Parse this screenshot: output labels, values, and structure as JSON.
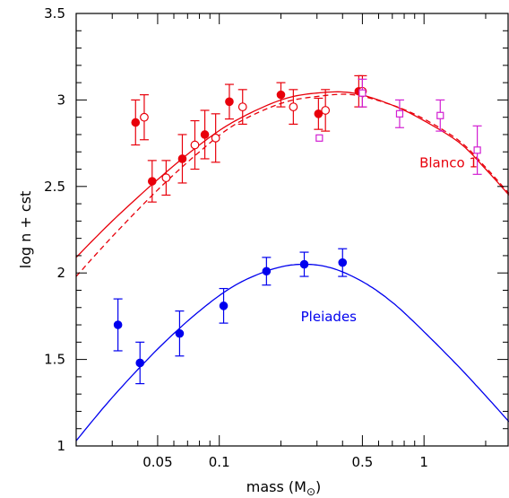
{
  "chart_data": {
    "type": "scatter",
    "xlabel": "mass (M",
    "xlabel_symbol": "⊙",
    "xlabel_close": ")",
    "ylabel": "log n + cst",
    "x_scale": "log",
    "xlim": [
      0.02,
      2.6
    ],
    "ylim": [
      1,
      3.5
    ],
    "grid": false,
    "x_ticks": [
      {
        "value": 0.05,
        "label": "0.05"
      },
      {
        "value": 0.1,
        "label": "0.1"
      },
      {
        "value": 0.5,
        "label": "0.5"
      },
      {
        "value": 1,
        "label": "1"
      }
    ],
    "y_ticks": [
      {
        "value": 1,
        "label": "1"
      },
      {
        "value": 1.5,
        "label": "1.5"
      },
      {
        "value": 2,
        "label": "2"
      },
      {
        "value": 2.5,
        "label": "2.5"
      },
      {
        "value": 3,
        "label": "3"
      },
      {
        "value": 3.5,
        "label": "3.5"
      }
    ],
    "labels": [
      {
        "text": "Blanco 1",
        "color": "#e8000b",
        "x": 0.95,
        "y": 2.61
      },
      {
        "text": "Pleiades",
        "color": "#0000ee",
        "x": 0.25,
        "y": 1.72
      }
    ],
    "series": [
      {
        "name": "Blanco 1",
        "marker": "filled-circle",
        "color": "#e8000b",
        "points": [
          {
            "x": 0.039,
            "y": 2.87,
            "err": 0.13
          },
          {
            "x": 0.047,
            "y": 2.53,
            "err": 0.12
          },
          {
            "x": 0.066,
            "y": 2.66,
            "err": 0.14
          },
          {
            "x": 0.085,
            "y": 2.8,
            "err": 0.14
          },
          {
            "x": 0.112,
            "y": 2.99,
            "err": 0.1
          },
          {
            "x": 0.2,
            "y": 3.03,
            "err": 0.07
          },
          {
            "x": 0.305,
            "y": 2.92,
            "err": 0.09
          },
          {
            "x": 0.48,
            "y": 3.05,
            "err": 0.09
          }
        ]
      },
      {
        "name": "Blanco 1",
        "marker": "open-circle",
        "color": "#e8000b",
        "points": [
          {
            "x": 0.043,
            "y": 2.9,
            "err": 0.13
          },
          {
            "x": 0.055,
            "y": 2.55,
            "err": 0.1
          },
          {
            "x": 0.076,
            "y": 2.74,
            "err": 0.14
          },
          {
            "x": 0.096,
            "y": 2.78,
            "err": 0.14
          },
          {
            "x": 0.13,
            "y": 2.96,
            "err": 0.1
          },
          {
            "x": 0.23,
            "y": 2.96,
            "err": 0.1
          },
          {
            "x": 0.33,
            "y": 2.94,
            "err": 0.12
          },
          {
            "x": 0.5,
            "y": 3.05,
            "err": 0.09
          }
        ]
      },
      {
        "name": "Blanco 1",
        "marker": "open-square",
        "color": "#d21fd2",
        "points": [
          {
            "x": 0.308,
            "y": 2.78,
            "err": 0.0
          },
          {
            "x": 0.5,
            "y": 3.04,
            "err": 0.08
          },
          {
            "x": 0.76,
            "y": 2.92,
            "err": 0.08
          },
          {
            "x": 1.2,
            "y": 2.91,
            "err": 0.09
          },
          {
            "x": 1.82,
            "y": 2.71,
            "err": 0.14
          }
        ]
      },
      {
        "name": "Pleiades",
        "marker": "filled-circle",
        "color": "#0000ee",
        "points": [
          {
            "x": 0.032,
            "y": 1.7,
            "err": 0.15
          },
          {
            "x": 0.041,
            "y": 1.48,
            "err": 0.12
          },
          {
            "x": 0.064,
            "y": 1.65,
            "err": 0.13
          },
          {
            "x": 0.105,
            "y": 1.81,
            "err": 0.1
          },
          {
            "x": 0.17,
            "y": 2.01,
            "err": 0.08
          },
          {
            "x": 0.26,
            "y": 2.05,
            "err": 0.07
          },
          {
            "x": 0.4,
            "y": 2.06,
            "err": 0.08
          }
        ]
      }
    ],
    "curves": [
      {
        "name": "Blanco 1",
        "style": "solid",
        "color": "#e8000b",
        "x": [
          0.02,
          0.03,
          0.05,
          0.08,
          0.12,
          0.2,
          0.3,
          0.45,
          0.7,
          1,
          1.5,
          2,
          2.6
        ],
        "y": [
          2.09,
          2.3,
          2.54,
          2.74,
          2.88,
          3.0,
          3.04,
          3.04,
          2.97,
          2.88,
          2.75,
          2.6,
          2.45
        ]
      },
      {
        "name": "Blanco 1",
        "style": "dashed",
        "color": "#e8000b",
        "x": [
          0.02,
          0.03,
          0.05,
          0.08,
          0.12,
          0.2,
          0.3,
          0.45,
          0.7,
          1,
          1.5,
          2,
          2.6
        ],
        "y": [
          1.98,
          2.21,
          2.48,
          2.7,
          2.86,
          2.98,
          3.02,
          3.03,
          2.97,
          2.89,
          2.76,
          2.61,
          2.46
        ]
      },
      {
        "name": "Pleiades",
        "style": "solid",
        "color": "#0000ee",
        "x": [
          0.02,
          0.03,
          0.05,
          0.08,
          0.12,
          0.18,
          0.25,
          0.35,
          0.5,
          0.7,
          1,
          1.5,
          2,
          2.6
        ],
        "y": [
          1.03,
          1.28,
          1.56,
          1.78,
          1.93,
          2.02,
          2.05,
          2.03,
          1.95,
          1.83,
          1.66,
          1.45,
          1.29,
          1.14
        ]
      }
    ]
  }
}
